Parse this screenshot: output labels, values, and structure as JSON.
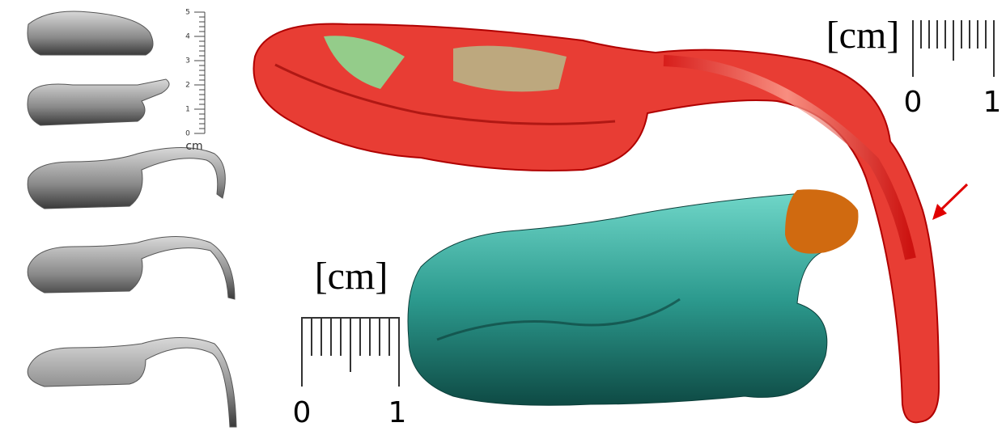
{
  "small_ruler": {
    "ticks": [
      "5",
      "4",
      "3",
      "2",
      "1",
      "0"
    ],
    "unit": "cm"
  },
  "top_scale": {
    "unit": "[cm]",
    "start": "0",
    "end": "1"
  },
  "bottom_scale": {
    "unit": "[cm]",
    "start": "0",
    "end": "1"
  }
}
